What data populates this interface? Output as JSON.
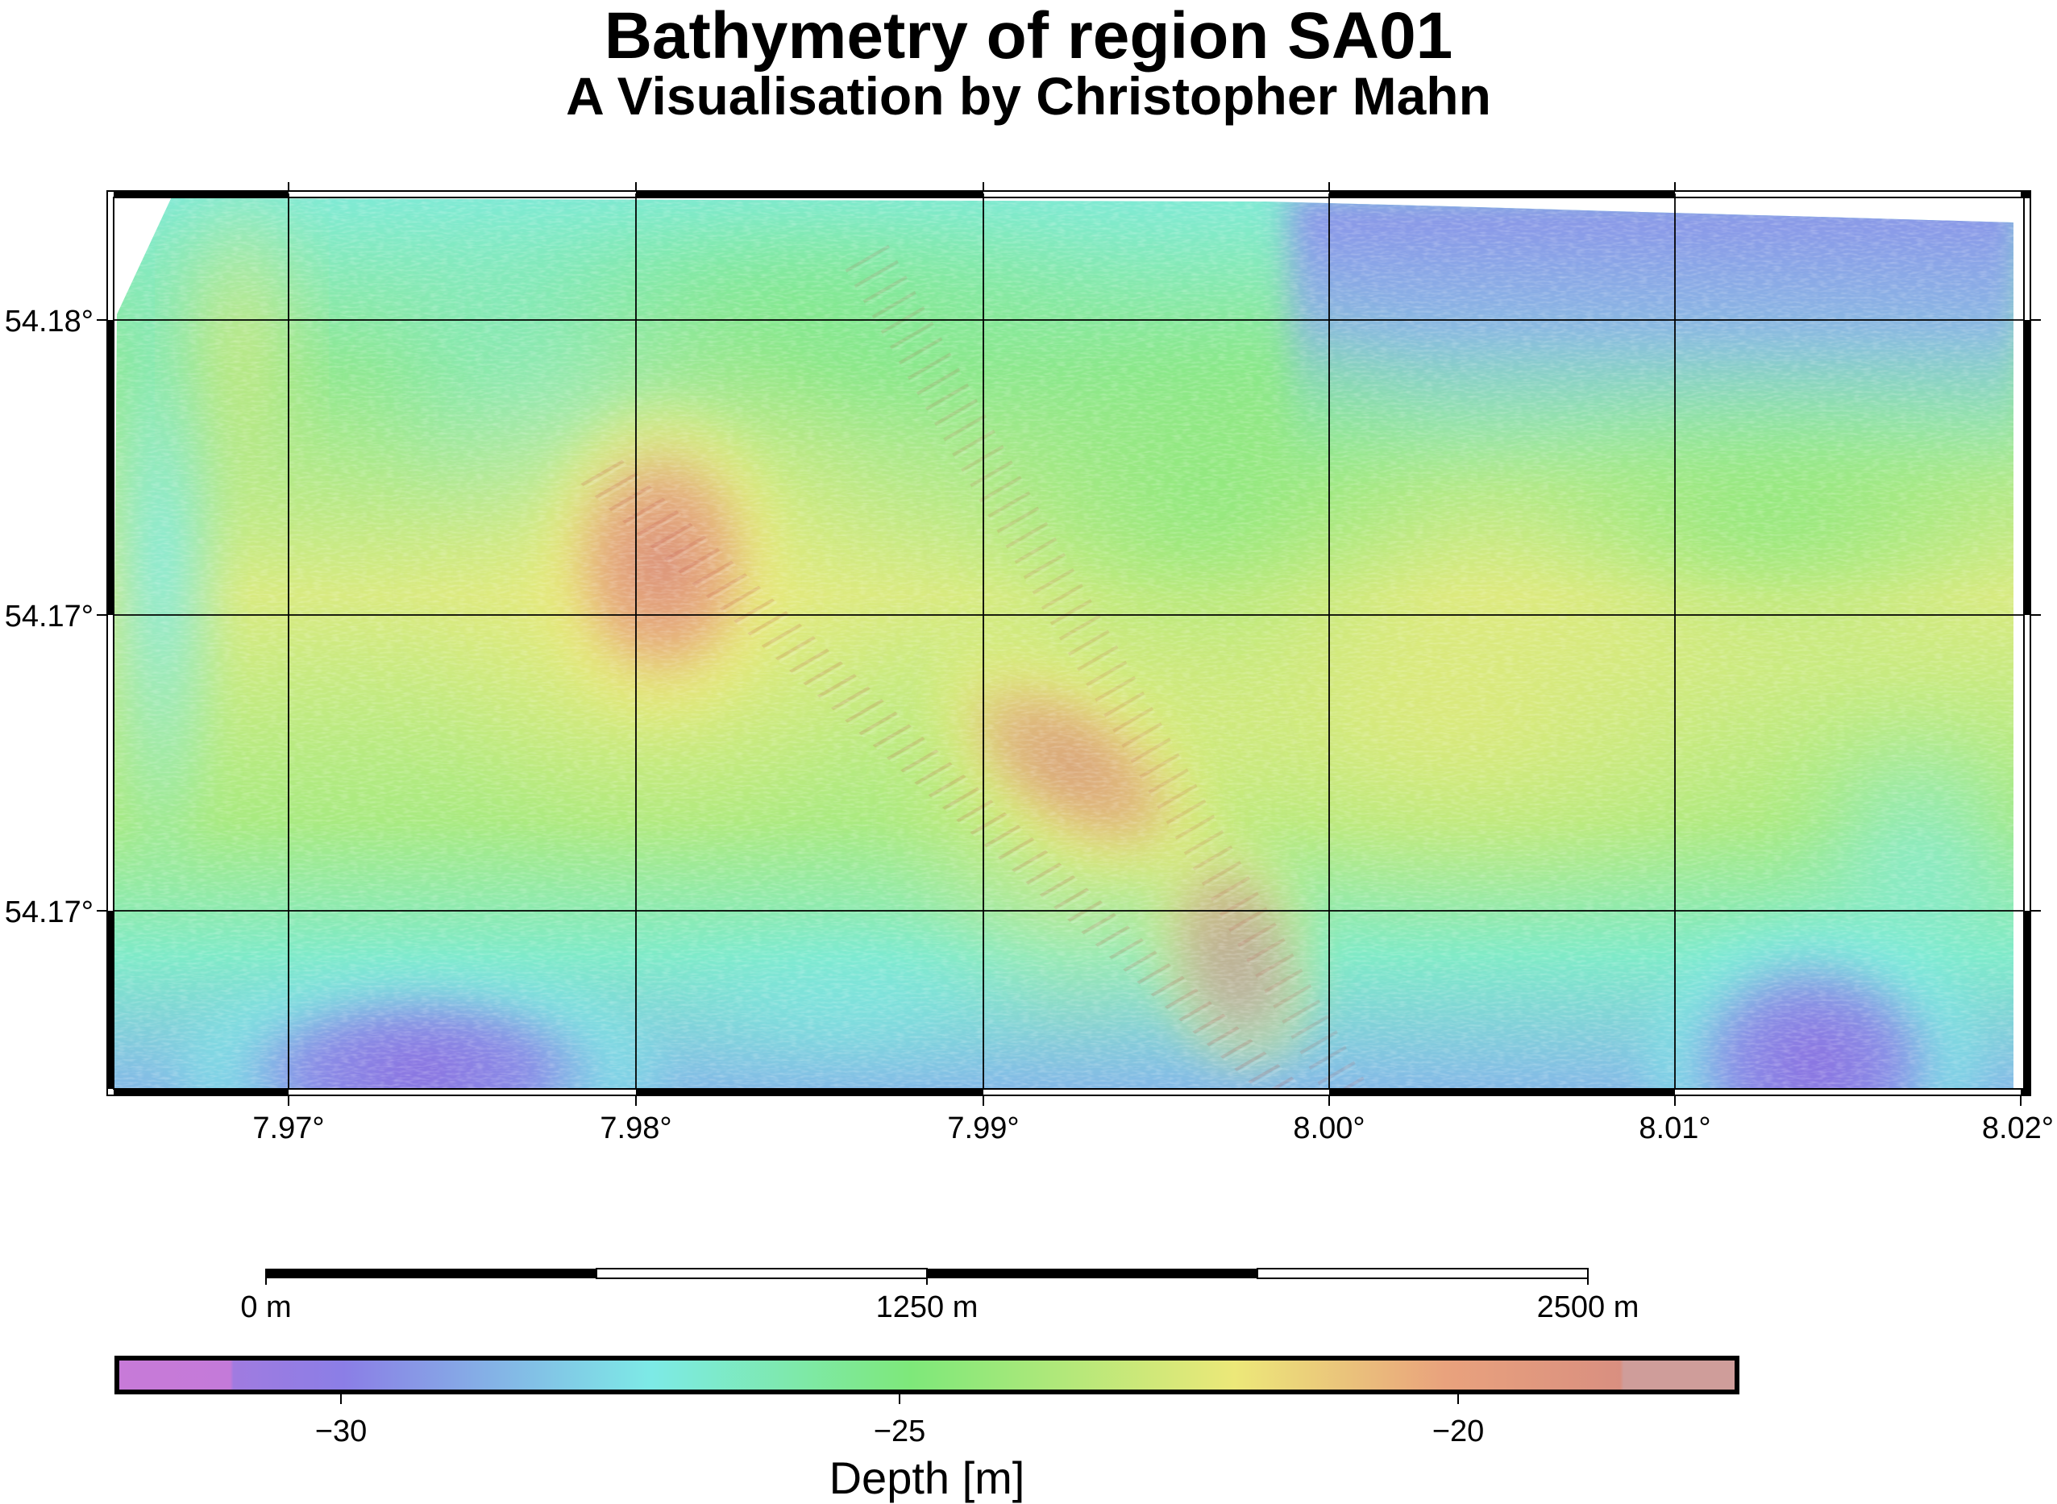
{
  "title": "Bathymetry of region SA01",
  "subtitle": "A Visualisation by Christopher Mahn",
  "map": {
    "x_ticks": [
      "7.97°",
      "7.98°",
      "7.99°",
      "8.00°",
      "8.01°",
      "8.02°"
    ],
    "y_ticks": [
      "54.18°",
      "54.17°",
      "54.17°"
    ],
    "frame_style": "fancy (alternating black/white)",
    "grid": true,
    "hillshade": true
  },
  "scale_bar": {
    "labels": [
      "0 m",
      "1250 m",
      "2500 m"
    ]
  },
  "colorbar": {
    "label": "Depth [m]",
    "tick_labels": [
      "−30",
      "−25",
      "−20"
    ],
    "tick_values": [
      -30,
      -25,
      -20
    ],
    "range": [
      -32.5,
      -18.0
    ],
    "stops": [
      {
        "value": -32.5,
        "color": "#c77ad8"
      },
      {
        "value": -30.0,
        "color": "#8b7ee6"
      },
      {
        "value": -27.5,
        "color": "#7deae6"
      },
      {
        "value": -25.0,
        "color": "#7ee87a"
      },
      {
        "value": -22.5,
        "color": "#ece879"
      },
      {
        "value": -20.5,
        "color": "#e9a27d"
      },
      {
        "value": -18.0,
        "color": "#cf9d9a"
      }
    ]
  },
  "colors": {
    "purple": "#8b7ee6",
    "cyan": "#7deae6",
    "green": "#7ee87a",
    "yellow": "#ece879",
    "orange": "#e9a27d",
    "red": "#d88a7a"
  }
}
